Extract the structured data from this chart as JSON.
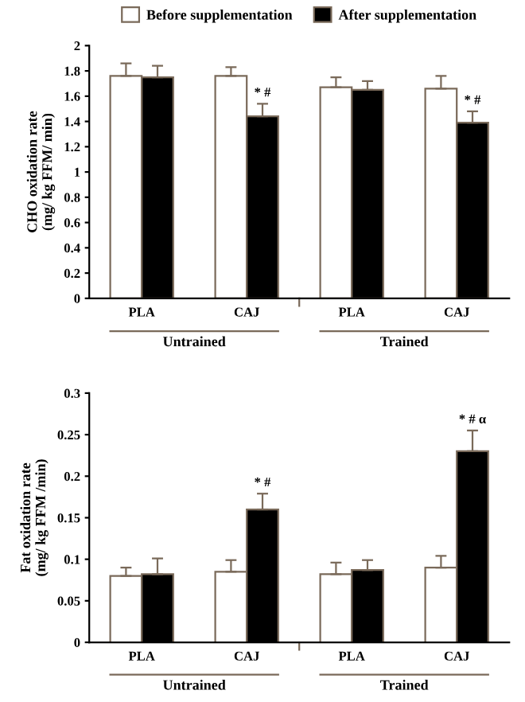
{
  "chart_data": [
    {
      "type": "bar",
      "categories": [
        "PLA",
        "CAJ",
        "PLA",
        "CAJ"
      ],
      "ylabel": "CHO oxidation rate\n(mg/ kg FFM/ min)",
      "ylim": [
        0,
        2
      ],
      "yticks": [
        0,
        0.2,
        0.4,
        0.6,
        0.8,
        1,
        1.2,
        1.4,
        1.6,
        1.8,
        2
      ],
      "grid": false,
      "legend": "top",
      "annotations": [
        "Untrained",
        "Trained"
      ],
      "series": [
        {
          "name": "Before supplementation",
          "color": "#ffffff",
          "values": [
            1.76,
            1.76,
            1.67,
            1.66
          ],
          "errors": [
            0.1,
            0.07,
            0.08,
            0.1
          ]
        },
        {
          "name": "After supplementation",
          "color": "#000000",
          "values": [
            1.75,
            1.44,
            1.65,
            1.39
          ],
          "errors": [
            0.09,
            0.1,
            0.07,
            0.09
          ],
          "value_labels": [
            null,
            "* #",
            null,
            "* #"
          ]
        }
      ]
    },
    {
      "type": "bar",
      "categories": [
        "PLA",
        "CAJ",
        "PLA",
        "CAJ"
      ],
      "ylabel": "Fat oxidation rate\n(mg/ kg FFM /min)",
      "ylim": [
        0,
        0.3
      ],
      "yticks": [
        0,
        0.05,
        0.1,
        0.15,
        0.2,
        0.25,
        0.3
      ],
      "grid": false,
      "annotations": [
        "Untrained",
        "Trained"
      ],
      "series": [
        {
          "color": "#ffffff",
          "values": [
            0.08,
            0.085,
            0.082,
            0.09
          ],
          "errors": [
            0.01,
            0.014,
            0.014,
            0.014
          ]
        },
        {
          "color": "#000000",
          "values": [
            0.082,
            0.16,
            0.087,
            0.23
          ],
          "errors": [
            0.019,
            0.019,
            0.012,
            0.025
          ],
          "value_labels": [
            null,
            "* #",
            null,
            "* # α"
          ]
        }
      ]
    }
  ]
}
